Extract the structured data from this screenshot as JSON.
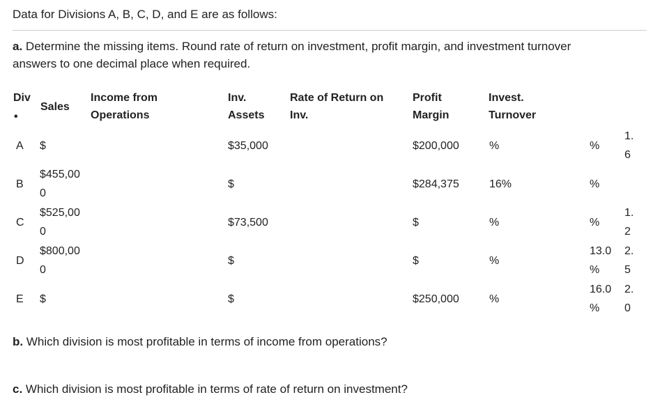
{
  "intro": "Data for Divisions A, B, C, D, and E are as follows:",
  "part_a": {
    "label": "a.",
    "text_line1": "Determine the missing items. Round rate of return on investment, profit margin, and investment turnover",
    "text_line2": "answers to one decimal place when required."
  },
  "table": {
    "headers": {
      "div": "Div",
      "div_dot": "•",
      "sales": "Sales",
      "income_line1": "Income from",
      "income_line2": "Operations",
      "inv_line1": "Inv.",
      "inv_line2": "Assets",
      "ror_line1": "Rate of Return on",
      "ror_line2": "Inv.",
      "pm_line1": "Profit",
      "pm_line2": "Margin",
      "it_line1": "Invest.",
      "it_line2": "Turnover"
    },
    "rows": [
      {
        "div": "A",
        "sales": [
          "$"
        ],
        "income": [
          "$35,000"
        ],
        "inv": [
          "$200,000"
        ],
        "ror": [
          "%"
        ],
        "pm": [
          "%"
        ],
        "it": [
          "1.",
          "6"
        ]
      },
      {
        "div": "B",
        "sales": [
          "$455,00",
          "0"
        ],
        "income": [
          "$"
        ],
        "inv": [
          "$284,375"
        ],
        "ror": [
          "16%"
        ],
        "pm": [
          "%"
        ],
        "it": []
      },
      {
        "div": "C",
        "sales": [
          "$525,00",
          "0"
        ],
        "income": [
          "$73,500"
        ],
        "inv": [
          "$"
        ],
        "ror": [
          "%"
        ],
        "pm": [
          "%"
        ],
        "it": [
          "1.",
          "2"
        ]
      },
      {
        "div": "D",
        "sales": [
          "$800,00",
          "0"
        ],
        "income": [
          "$"
        ],
        "inv": [
          "$"
        ],
        "ror": [
          "%"
        ],
        "pm": [
          "13.0",
          "%"
        ],
        "it": [
          "2.",
          "5"
        ]
      },
      {
        "div": "E",
        "sales": [
          "$"
        ],
        "income": [
          "$"
        ],
        "inv": [
          "$250,000"
        ],
        "ror": [
          "%"
        ],
        "pm": [
          "16.0",
          "%"
        ],
        "it": [
          "2.",
          "0"
        ]
      }
    ]
  },
  "part_b": {
    "label": "b.",
    "text": "Which division is most profitable in terms of income from operations?"
  },
  "part_c": {
    "label": "c.",
    "text": "Which division is most profitable in terms of rate of return on investment?"
  }
}
